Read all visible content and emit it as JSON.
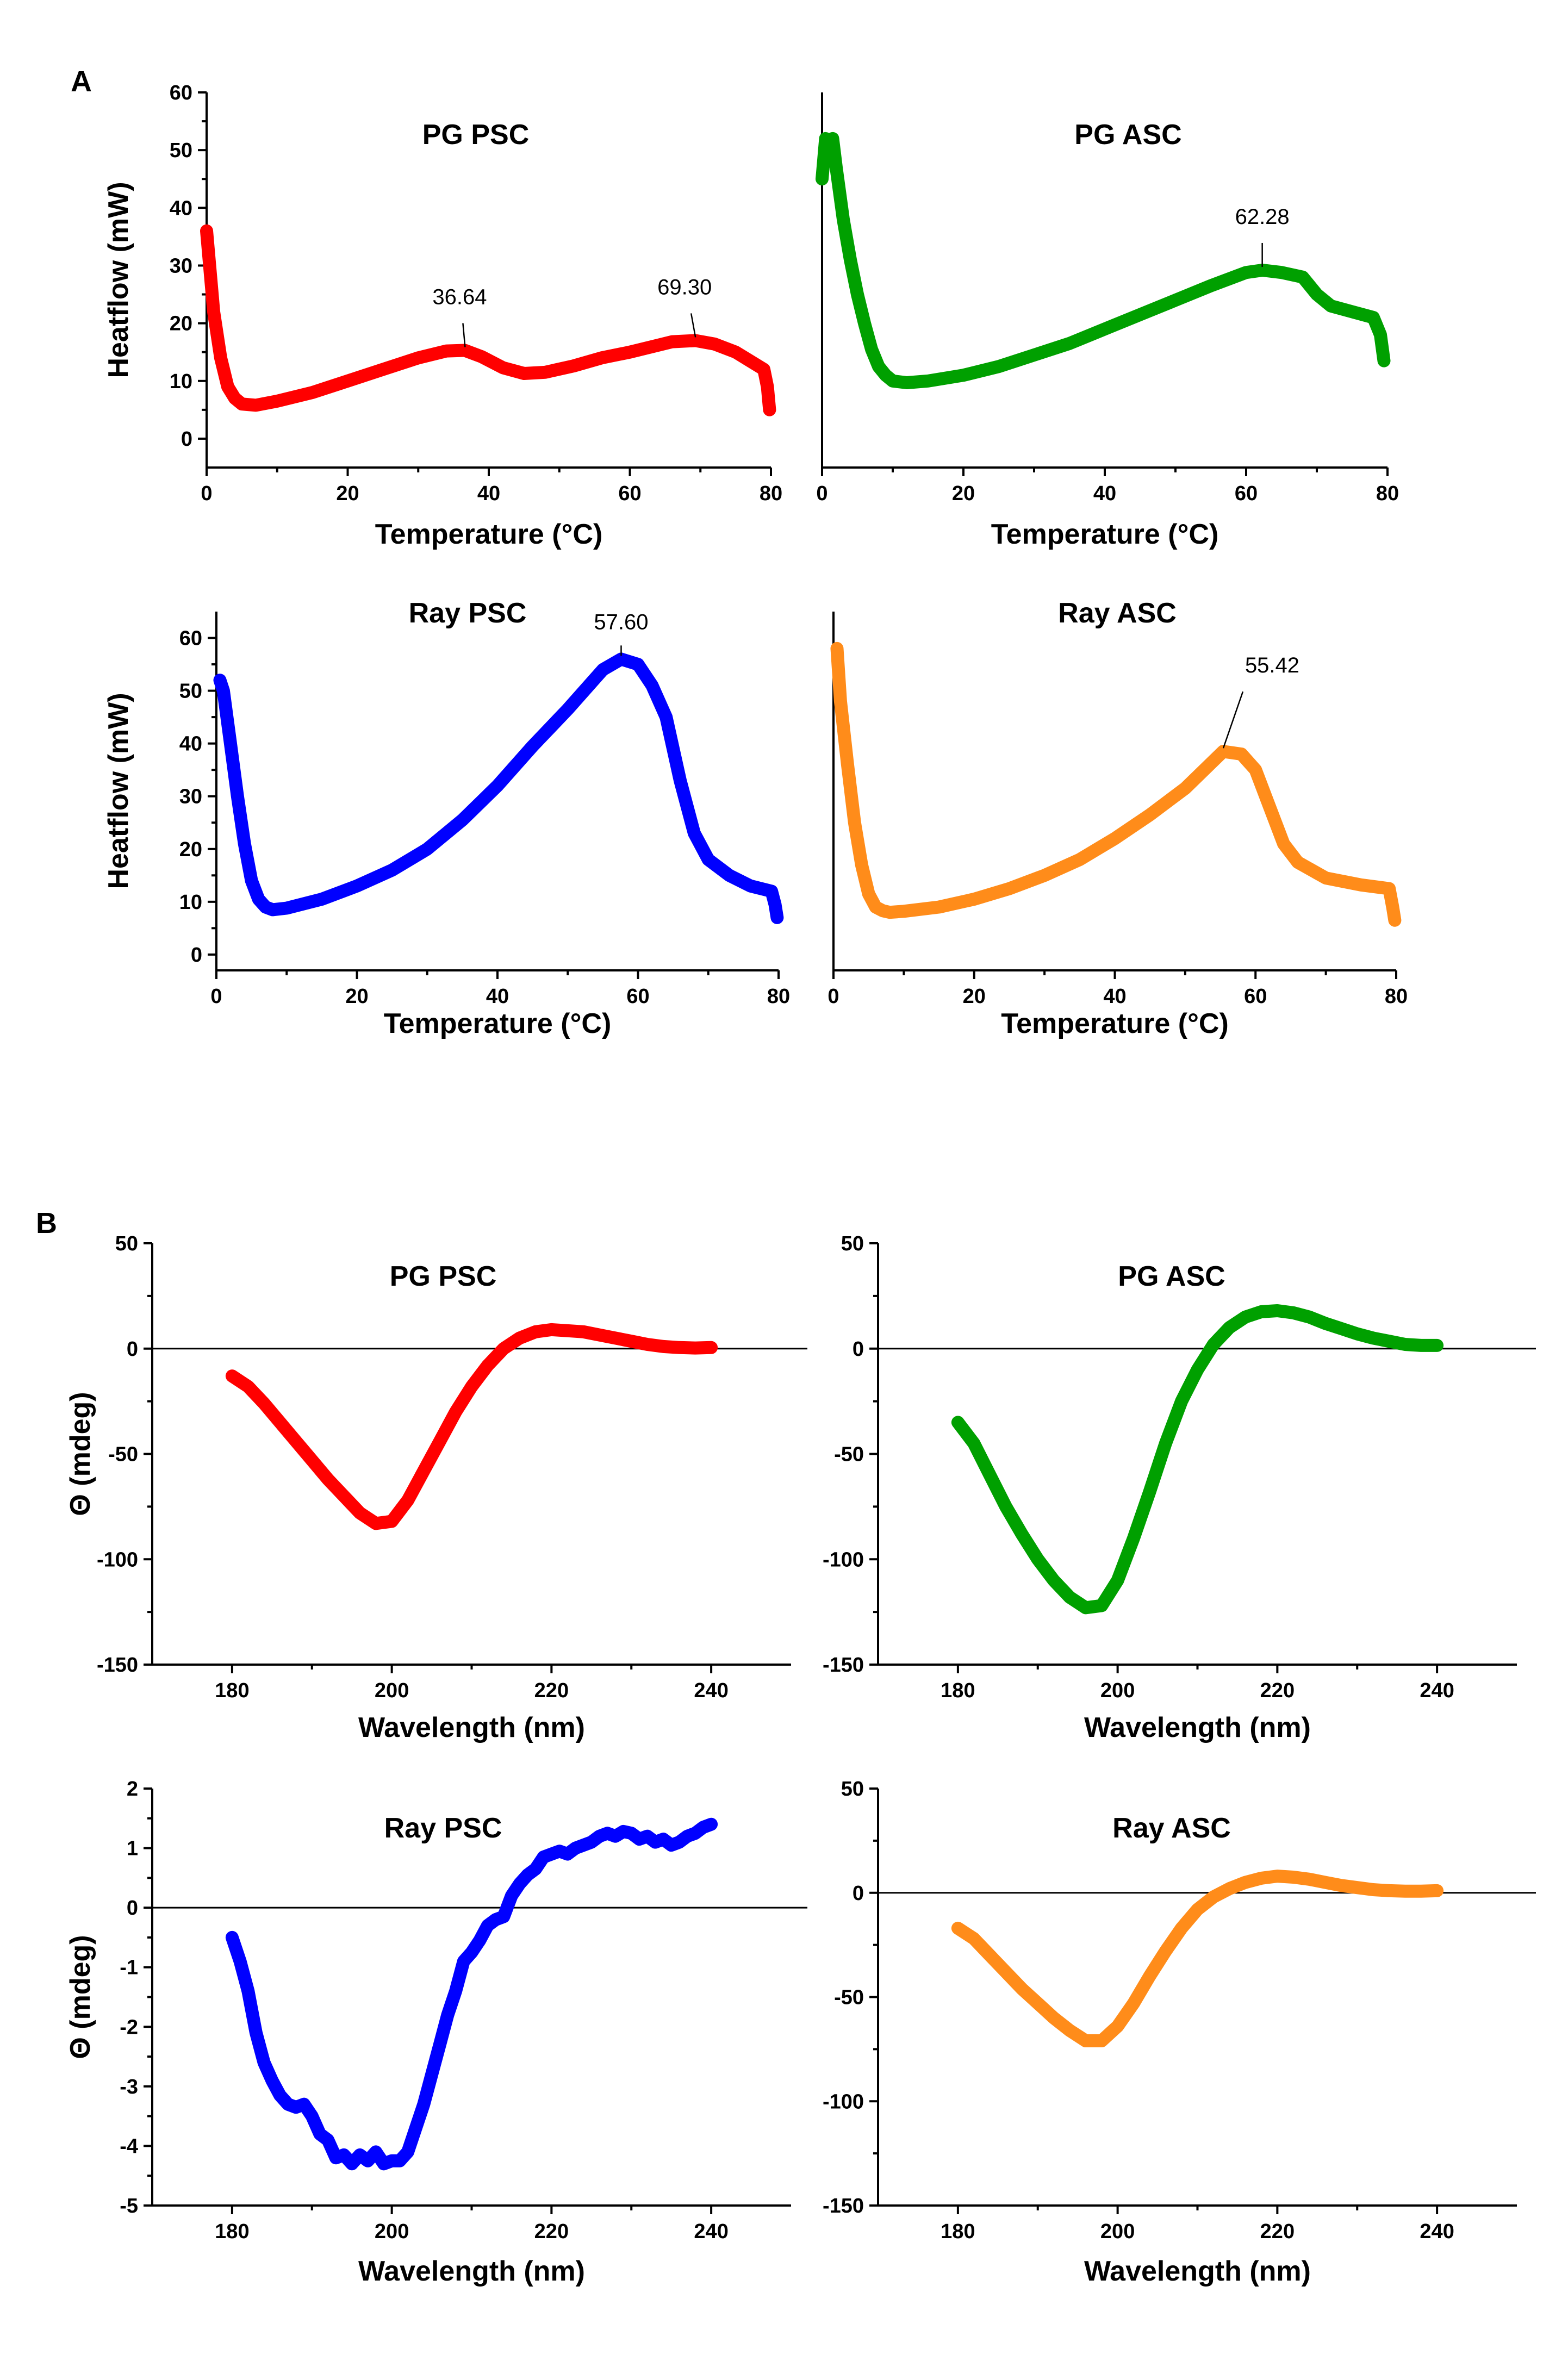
{
  "panel_labels": [
    "A",
    "B"
  ],
  "colors": {
    "red": "#ff0000",
    "green": "#00a000",
    "blue": "#0000ff",
    "orange": "#ff8c1a"
  },
  "chart_data": [
    {
      "id": "dsc-pg-psc",
      "type": "line",
      "group": "A",
      "title": "PG PSC",
      "xlabel": "Temperature (°C)",
      "ylabel": "Heatflow (mW)",
      "xlim": [
        0,
        80
      ],
      "ylim": [
        -5,
        60
      ],
      "xticks": [
        "0",
        "20",
        "40",
        "60",
        "80"
      ],
      "yticks": [
        "0",
        "10",
        "20",
        "30",
        "40",
        "50",
        "60"
      ],
      "color_key": "red",
      "x": [
        0,
        1,
        2,
        3,
        4,
        5,
        7,
        10,
        15,
        20,
        25,
        30,
        34,
        36.6,
        39,
        42,
        45,
        48,
        52,
        56,
        60,
        64,
        66,
        69.3,
        72,
        75,
        77,
        79,
        79.5,
        79.8
      ],
      "y": [
        36,
        22,
        14,
        9,
        7,
        6,
        5.8,
        6.5,
        8,
        10,
        12,
        14,
        15.2,
        15.3,
        14.2,
        12.3,
        11.3,
        11.5,
        12.6,
        14,
        15,
        16.2,
        16.8,
        17,
        16.4,
        15,
        13.5,
        12,
        9,
        5
      ],
      "annotations": [
        {
          "text": "36.64",
          "x": 36.64,
          "y": 15.3
        },
        {
          "text": "69.30",
          "x": 69.3,
          "y": 17
        }
      ]
    },
    {
      "id": "dsc-pg-asc",
      "type": "line",
      "group": "A",
      "title": "PG ASC",
      "xlabel": "Temperature (°C)",
      "ylabel": "",
      "xlim": [
        0,
        80
      ],
      "ylim": [
        -5,
        60
      ],
      "xticks": [
        "0",
        "20",
        "40",
        "60",
        "80"
      ],
      "yticks": [],
      "color_key": "green",
      "x": [
        0,
        0.5,
        1,
        1.5,
        2,
        3,
        4,
        5,
        6,
        7,
        8,
        9,
        10,
        12,
        15,
        20,
        25,
        30,
        35,
        40,
        45,
        50,
        55,
        60,
        62.3,
        65,
        68,
        70,
        72,
        75,
        78,
        79,
        79.5
      ],
      "y": [
        45,
        52,
        51,
        52,
        47,
        38,
        31,
        25,
        20,
        15.5,
        12.5,
        11,
        10,
        9.7,
        10,
        11,
        12.5,
        14.5,
        16.5,
        19,
        21.5,
        24,
        26.5,
        28.8,
        29.2,
        28.8,
        28,
        25,
        23,
        22,
        21,
        18,
        13.5
      ],
      "annotations": [
        {
          "text": "62.28",
          "x": 62.28,
          "y": 29.2
        }
      ]
    },
    {
      "id": "dsc-ray-psc",
      "type": "line",
      "group": "A",
      "title": "Ray PSC",
      "xlabel": "Temperature (°C)",
      "ylabel": "Heatflow (mW)",
      "xlim": [
        0,
        80
      ],
      "ylim": [
        -3,
        65
      ],
      "xticks": [
        "0",
        "20",
        "40",
        "60",
        "80"
      ],
      "yticks": [
        "0",
        "10",
        "20",
        "30",
        "40",
        "50",
        "60"
      ],
      "color_key": "blue",
      "x": [
        0.5,
        1,
        2,
        3,
        4,
        5,
        6,
        7,
        8,
        10,
        15,
        20,
        25,
        30,
        35,
        40,
        45,
        50,
        55,
        57.6,
        60,
        62,
        64,
        66,
        68,
        70,
        73,
        76,
        79,
        79.5,
        79.8
      ],
      "y": [
        52,
        50,
        40,
        30,
        21,
        14,
        10.5,
        9,
        8.5,
        8.8,
        10.5,
        13,
        16,
        20,
        25.5,
        32,
        39.5,
        46.5,
        54,
        56,
        55,
        51,
        45,
        33,
        23,
        18,
        15,
        13,
        12,
        9.5,
        7
      ],
      "annotations": [
        {
          "text": "57.60",
          "x": 57.6,
          "y": 56
        }
      ]
    },
    {
      "id": "dsc-ray-asc",
      "type": "line",
      "group": "A",
      "title": "Ray ASC",
      "xlabel": "Temperature (°C)",
      "ylabel": "",
      "xlim": [
        0,
        80
      ],
      "ylim": [
        -3,
        65
      ],
      "xticks": [
        "0",
        "20",
        "40",
        "60",
        "80"
      ],
      "yticks": [],
      "color_key": "orange",
      "x": [
        0.5,
        1,
        2,
        3,
        4,
        5,
        6,
        7,
        8,
        10,
        15,
        20,
        25,
        30,
        35,
        40,
        45,
        50,
        55.4,
        58,
        60,
        62,
        64,
        66,
        70,
        75,
        79,
        79.5,
        79.8
      ],
      "y": [
        58,
        48,
        36,
        25,
        17,
        11.5,
        9,
        8.3,
        8,
        8.2,
        9,
        10.5,
        12.5,
        15,
        18,
        22,
        26.5,
        31.5,
        38.5,
        38,
        35,
        28,
        21,
        17.5,
        14.5,
        13.2,
        12.5,
        9,
        6.5
      ],
      "annotations": [
        {
          "text": "55.42",
          "x": 55.42,
          "y": 38.5
        }
      ]
    },
    {
      "id": "cd-pg-psc",
      "type": "line",
      "group": "B",
      "title": "PG PSC",
      "xlabel": "Wavelength (nm)",
      "ylabel": "Θ (mdeg)",
      "xlim": [
        170,
        250
      ],
      "ylim": [
        -150,
        50
      ],
      "xticks": [
        "180",
        "200",
        "220",
        "240"
      ],
      "yticks": [
        "-150",
        "-100",
        "-50",
        "0",
        "50"
      ],
      "zero_line": true,
      "color_key": "red",
      "x": [
        180,
        182,
        184,
        186,
        188,
        190,
        192,
        194,
        196,
        198,
        200,
        202,
        204,
        206,
        208,
        210,
        212,
        214,
        216,
        218,
        220,
        222,
        224,
        226,
        228,
        230,
        232,
        234,
        236,
        238,
        240
      ],
      "y": [
        -13,
        -18,
        -26,
        -35,
        -44,
        -53,
        -62,
        -70,
        -78,
        -83,
        -82,
        -72,
        -58,
        -44,
        -30,
        -18,
        -8,
        0,
        5,
        8,
        9,
        8.5,
        8,
        6.5,
        5,
        3.5,
        2,
        1,
        0.5,
        0.3,
        0.5
      ]
    },
    {
      "id": "cd-pg-asc",
      "type": "line",
      "group": "B",
      "title": "PG ASC",
      "xlabel": "Wavelength (nm)",
      "ylabel": "",
      "xlim": [
        170,
        250
      ],
      "ylim": [
        -150,
        50
      ],
      "xticks": [
        "180",
        "200",
        "220",
        "240"
      ],
      "yticks": [
        "-150",
        "-100",
        "-50",
        "0",
        "50"
      ],
      "zero_line": true,
      "color_key": "green",
      "x": [
        180,
        182,
        184,
        186,
        188,
        190,
        192,
        194,
        196,
        198,
        200,
        202,
        204,
        206,
        208,
        210,
        212,
        214,
        216,
        218,
        220,
        222,
        224,
        226,
        228,
        230,
        232,
        234,
        236,
        238,
        240
      ],
      "y": [
        -35,
        -45,
        -60,
        -75,
        -88,
        -100,
        -110,
        -118,
        -123,
        -122,
        -110,
        -90,
        -68,
        -45,
        -25,
        -10,
        2,
        10,
        15,
        17.5,
        18,
        17,
        15,
        12,
        9.5,
        7,
        5,
        3.5,
        2,
        1.5,
        1.5
      ]
    },
    {
      "id": "cd-ray-psc",
      "type": "line",
      "group": "B",
      "title": "Ray PSC",
      "xlabel": "Wavelength (nm)",
      "ylabel": "Θ (mdeg)",
      "xlim": [
        170,
        250
      ],
      "ylim": [
        -5,
        2
      ],
      "xticks": [
        "180",
        "200",
        "220",
        "240"
      ],
      "yticks": [
        "-5",
        "-4",
        "-3",
        "-2",
        "-1",
        "0",
        "1",
        "2"
      ],
      "zero_line": true,
      "color_key": "blue",
      "x": [
        180,
        181,
        182,
        183,
        184,
        185,
        186,
        187,
        188,
        189,
        190,
        191,
        192,
        193,
        194,
        195,
        196,
        197,
        198,
        199,
        200,
        201,
        202,
        203,
        204,
        205,
        206,
        207,
        208,
        209,
        210,
        211,
        212,
        213,
        214,
        215,
        216,
        217,
        218,
        219,
        220,
        221,
        222,
        223,
        224,
        225,
        226,
        227,
        228,
        229,
        230,
        231,
        232,
        233,
        234,
        235,
        236,
        237,
        238,
        239,
        240
      ],
      "y": [
        -0.5,
        -0.9,
        -1.4,
        -2.1,
        -2.6,
        -2.9,
        -3.15,
        -3.3,
        -3.35,
        -3.3,
        -3.5,
        -3.8,
        -3.9,
        -4.2,
        -4.15,
        -4.3,
        -4.15,
        -4.25,
        -4.1,
        -4.3,
        -4.25,
        -4.25,
        -4.1,
        -3.7,
        -3.3,
        -2.8,
        -2.3,
        -1.8,
        -1.4,
        -0.9,
        -0.75,
        -0.55,
        -0.3,
        -0.2,
        -0.15,
        0.2,
        0.4,
        0.55,
        0.65,
        0.85,
        0.9,
        0.95,
        0.9,
        1.0,
        1.05,
        1.1,
        1.2,
        1.25,
        1.2,
        1.28,
        1.25,
        1.15,
        1.2,
        1.1,
        1.15,
        1.05,
        1.1,
        1.2,
        1.25,
        1.35,
        1.4
      ]
    },
    {
      "id": "cd-ray-asc",
      "type": "line",
      "group": "B",
      "title": "Ray ASC",
      "xlabel": "Wavelength (nm)",
      "ylabel": "",
      "xlim": [
        170,
        250
      ],
      "ylim": [
        -150,
        50
      ],
      "xticks": [
        "180",
        "200",
        "220",
        "240"
      ],
      "yticks": [
        "-150",
        "-100",
        "-50",
        "0",
        "50"
      ],
      "zero_line": true,
      "color_key": "orange",
      "x": [
        180,
        182,
        184,
        186,
        188,
        190,
        192,
        194,
        196,
        198,
        200,
        202,
        204,
        206,
        208,
        210,
        212,
        214,
        216,
        218,
        220,
        222,
        224,
        226,
        228,
        230,
        232,
        234,
        236,
        238,
        240
      ],
      "y": [
        -17,
        -22,
        -30,
        -38,
        -46,
        -53,
        -60,
        -66,
        -71,
        -71,
        -64,
        -53,
        -40,
        -28,
        -17,
        -8,
        -2,
        2,
        5,
        7,
        8,
        7.5,
        6.5,
        5,
        3.5,
        2.5,
        1.5,
        1,
        0.8,
        0.8,
        1
      ]
    }
  ]
}
